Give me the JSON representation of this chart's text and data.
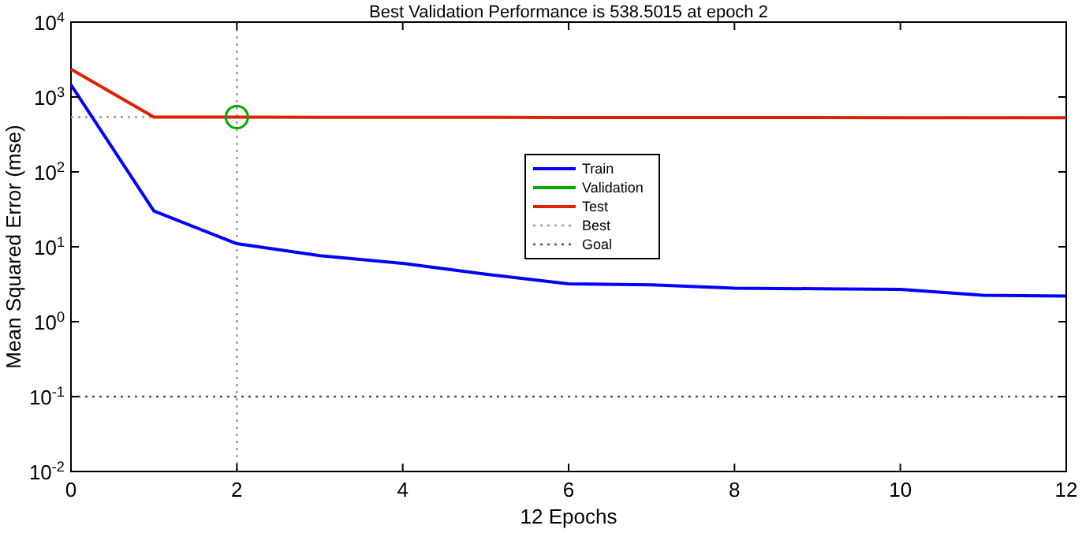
{
  "chart_data": {
    "type": "line",
    "title": "Best Validation Performance is 538.5015 at epoch 2",
    "xlabel": "12 Epochs",
    "ylabel": "Mean Squared Error  (mse)",
    "x": [
      0,
      1,
      2,
      3,
      4,
      5,
      6,
      7,
      8,
      9,
      10,
      11,
      12
    ],
    "series": [
      {
        "name": "Train",
        "color": "#0000ff",
        "values": [
          1450,
          30,
          11,
          7.6,
          6,
          4.3,
          3.2,
          3.1,
          2.8,
          2.75,
          2.7,
          2.25,
          2.2
        ]
      },
      {
        "name": "Validation",
        "color": "#00aa00",
        "type": "scatter",
        "marker": "circle",
        "values": [
          null,
          null,
          538.5015,
          null,
          null,
          null,
          null,
          null,
          null,
          null,
          null,
          null,
          null
        ]
      },
      {
        "name": "Test",
        "color": "#dd2200",
        "values": [
          2350,
          540,
          538,
          537,
          536,
          535,
          534,
          533,
          532,
          531,
          530,
          529,
          528
        ]
      }
    ],
    "xlim": [
      0,
      12
    ],
    "xticks": [
      0,
      2,
      4,
      6,
      8,
      10,
      12
    ],
    "ylim": [
      0.01,
      10000
    ],
    "yticks": [
      {
        "value": 0.01,
        "label": "10$^{-2}$"
      },
      {
        "value": 0.1,
        "label": "10$^{-1}$"
      },
      {
        "value": 1,
        "label": "10$^{0}$"
      },
      {
        "value": 10,
        "label": "10$^{1}$"
      },
      {
        "value": 100,
        "label": "10$^{2}$"
      },
      {
        "value": 1000,
        "label": "10$^{3}$"
      },
      {
        "value": 10000,
        "label": "10$^{4}$"
      }
    ],
    "log": "y",
    "legend": "right",
    "line_style": "solid",
    "marker": "none",
    "ref_lines": [
      {
        "axis": "y",
        "value": 538.5015,
        "label": "Best",
        "line_style": "dotted",
        "color": "#999999"
      },
      {
        "axis": "x",
        "value": 2,
        "line_style": "dotted",
        "color": "#999999"
      },
      {
        "axis": "y",
        "value": 0.1,
        "label": "Goal",
        "line_style": "dotted",
        "color": "#555555"
      }
    ]
  }
}
